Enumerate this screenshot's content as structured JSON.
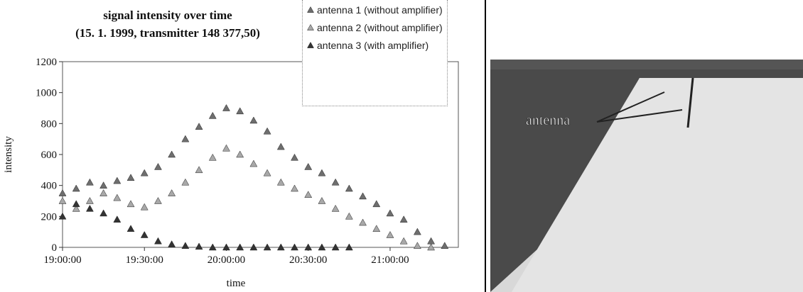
{
  "chart_data": {
    "type": "scatter",
    "title": [
      "signal intensity over time",
      "(15. 1. 1999, transmitter 148 377,50)"
    ],
    "x_label": "time",
    "y_label": "intensity",
    "xlim": [
      "19:00:00",
      "21:25:00"
    ],
    "xticks": [
      "19:00:00",
      "19:30:00",
      "20:00:00",
      "20:30:00",
      "21:00:00"
    ],
    "ylim": [
      0,
      1200
    ],
    "yticks": [
      0,
      200,
      400,
      600,
      800,
      1000,
      1200
    ],
    "legend": "top-right",
    "series": [
      {
        "name": "antenna 1 (without amplifier)",
        "color": "#6e6e6e",
        "x": [
          "19:00:00",
          "19:05:00",
          "19:10:00",
          "19:15:00",
          "19:20:00",
          "19:25:00",
          "19:30:00",
          "19:35:00",
          "19:40:00",
          "19:45:00",
          "19:50:00",
          "19:55:00",
          "20:00:00",
          "20:05:00",
          "20:10:00",
          "20:15:00",
          "20:20:00",
          "20:25:00",
          "20:30:00",
          "20:35:00",
          "20:40:00",
          "20:45:00",
          "20:50:00",
          "20:55:00",
          "21:00:00",
          "21:05:00",
          "21:10:00",
          "21:15:00",
          "21:20:00"
        ],
        "values": [
          350,
          380,
          420,
          400,
          430,
          450,
          480,
          520,
          600,
          700,
          780,
          850,
          900,
          880,
          820,
          750,
          650,
          580,
          520,
          480,
          420,
          380,
          330,
          280,
          220,
          180,
          100,
          40,
          10
        ]
      },
      {
        "name": "antenna 2 (without amplifier)",
        "color": "#a8a8a8",
        "x": [
          "19:00:00",
          "19:05:00",
          "19:10:00",
          "19:15:00",
          "19:20:00",
          "19:25:00",
          "19:30:00",
          "19:35:00",
          "19:40:00",
          "19:45:00",
          "19:50:00",
          "19:55:00",
          "20:00:00",
          "20:05:00",
          "20:10:00",
          "20:15:00",
          "20:20:00",
          "20:25:00",
          "20:30:00",
          "20:35:00",
          "20:40:00",
          "20:45:00",
          "20:50:00",
          "20:55:00",
          "21:00:00",
          "21:05:00",
          "21:10:00",
          "21:15:00"
        ],
        "values": [
          300,
          250,
          300,
          350,
          320,
          280,
          260,
          300,
          350,
          420,
          500,
          580,
          640,
          600,
          540,
          480,
          420,
          380,
          340,
          300,
          250,
          200,
          160,
          120,
          80,
          40,
          10,
          0
        ]
      },
      {
        "name": "antenna 3 (with amplifier)",
        "color": "#333333",
        "x": [
          "19:00:00",
          "19:05:00",
          "19:10:00",
          "19:15:00",
          "19:20:00",
          "19:25:00",
          "19:30:00",
          "19:35:00",
          "19:40:00",
          "19:45:00",
          "19:50:00",
          "19:55:00",
          "20:00:00",
          "20:05:00",
          "20:10:00",
          "20:15:00",
          "20:20:00",
          "20:25:00",
          "20:30:00",
          "20:35:00",
          "20:40:00",
          "20:45:00"
        ],
        "values": [
          200,
          280,
          250,
          220,
          180,
          120,
          80,
          40,
          20,
          10,
          5,
          0,
          0,
          0,
          0,
          0,
          0,
          0,
          0,
          0,
          0,
          0
        ]
      }
    ]
  },
  "photo": {
    "label": "antenna"
  }
}
